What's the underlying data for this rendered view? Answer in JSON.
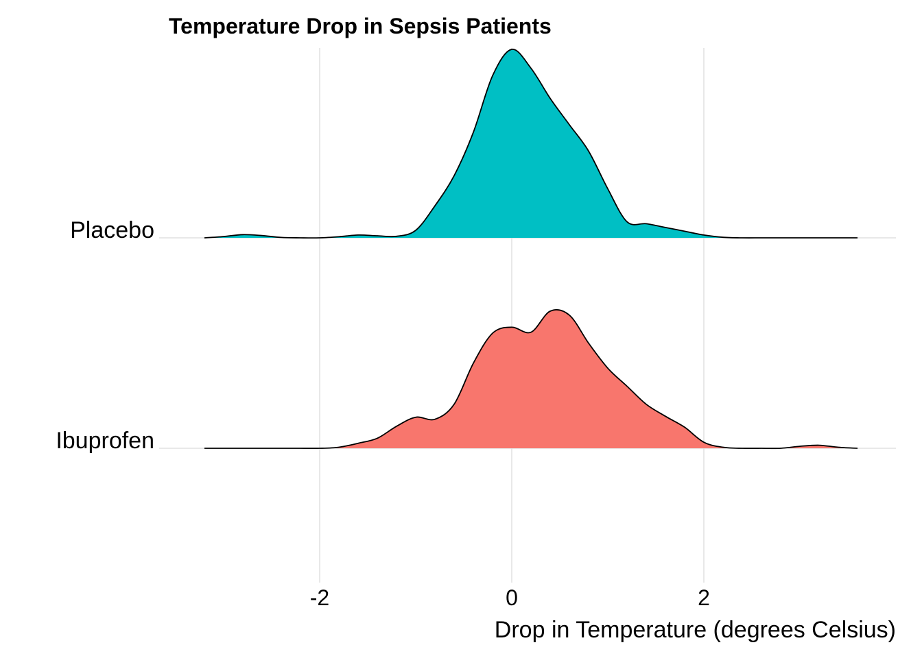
{
  "chart_data": {
    "type": "ridgeline density",
    "title": "Temperature Drop in Sepsis Patients",
    "xlabel": "Drop in Temperature (degrees Celsius)",
    "ylabel": "",
    "xlim": [
      -3.3,
      3.6
    ],
    "x_ticks": [
      -2,
      0,
      2
    ],
    "x_tick_labels": [
      "-2",
      "0",
      "2"
    ],
    "grid": "vertical major gridlines and horizontal baselines",
    "categories": [
      "Placebo",
      "Ibuprofen"
    ],
    "series": [
      {
        "name": "Placebo",
        "color": "#00BFC4",
        "x": [
          -3.2,
          -3.0,
          -2.8,
          -2.6,
          -2.4,
          -2.2,
          -2.0,
          -1.8,
          -1.6,
          -1.4,
          -1.2,
          -1.0,
          -0.8,
          -0.6,
          -0.4,
          -0.2,
          0.0,
          0.2,
          0.4,
          0.6,
          0.8,
          1.0,
          1.2,
          1.4,
          1.6,
          1.8,
          2.0,
          2.2,
          2.4,
          2.6,
          2.8,
          3.0,
          3.2,
          3.4,
          3.6
        ],
        "density": [
          0.0,
          0.007,
          0.017,
          0.012,
          0.002,
          0.0,
          0.0,
          0.006,
          0.015,
          0.011,
          0.008,
          0.04,
          0.17,
          0.33,
          0.56,
          0.86,
          1.0,
          0.9,
          0.74,
          0.6,
          0.46,
          0.26,
          0.085,
          0.075,
          0.055,
          0.035,
          0.015,
          0.003,
          0.0,
          0.0,
          0.0,
          0.0,
          0.0,
          0.0,
          0.0
        ]
      },
      {
        "name": "Ibuprofen",
        "color": "#F8766D",
        "x": [
          -3.2,
          -3.0,
          -2.8,
          -2.6,
          -2.4,
          -2.2,
          -2.0,
          -1.8,
          -1.6,
          -1.4,
          -1.2,
          -1.0,
          -0.8,
          -0.6,
          -0.4,
          -0.2,
          0.0,
          0.2,
          0.4,
          0.6,
          0.8,
          1.0,
          1.2,
          1.4,
          1.6,
          1.8,
          2.0,
          2.2,
          2.4,
          2.6,
          2.8,
          3.0,
          3.2,
          3.4,
          3.6
        ],
        "density": [
          0.0,
          0.0,
          0.0,
          0.0,
          0.0,
          0.0,
          0.0,
          0.01,
          0.05,
          0.1,
          0.22,
          0.31,
          0.29,
          0.44,
          0.85,
          1.15,
          1.21,
          1.16,
          1.37,
          1.33,
          1.05,
          0.8,
          0.62,
          0.44,
          0.32,
          0.21,
          0.06,
          0.01,
          0.0,
          0.0,
          0.0,
          0.02,
          0.03,
          0.01,
          0.0
        ]
      }
    ]
  }
}
